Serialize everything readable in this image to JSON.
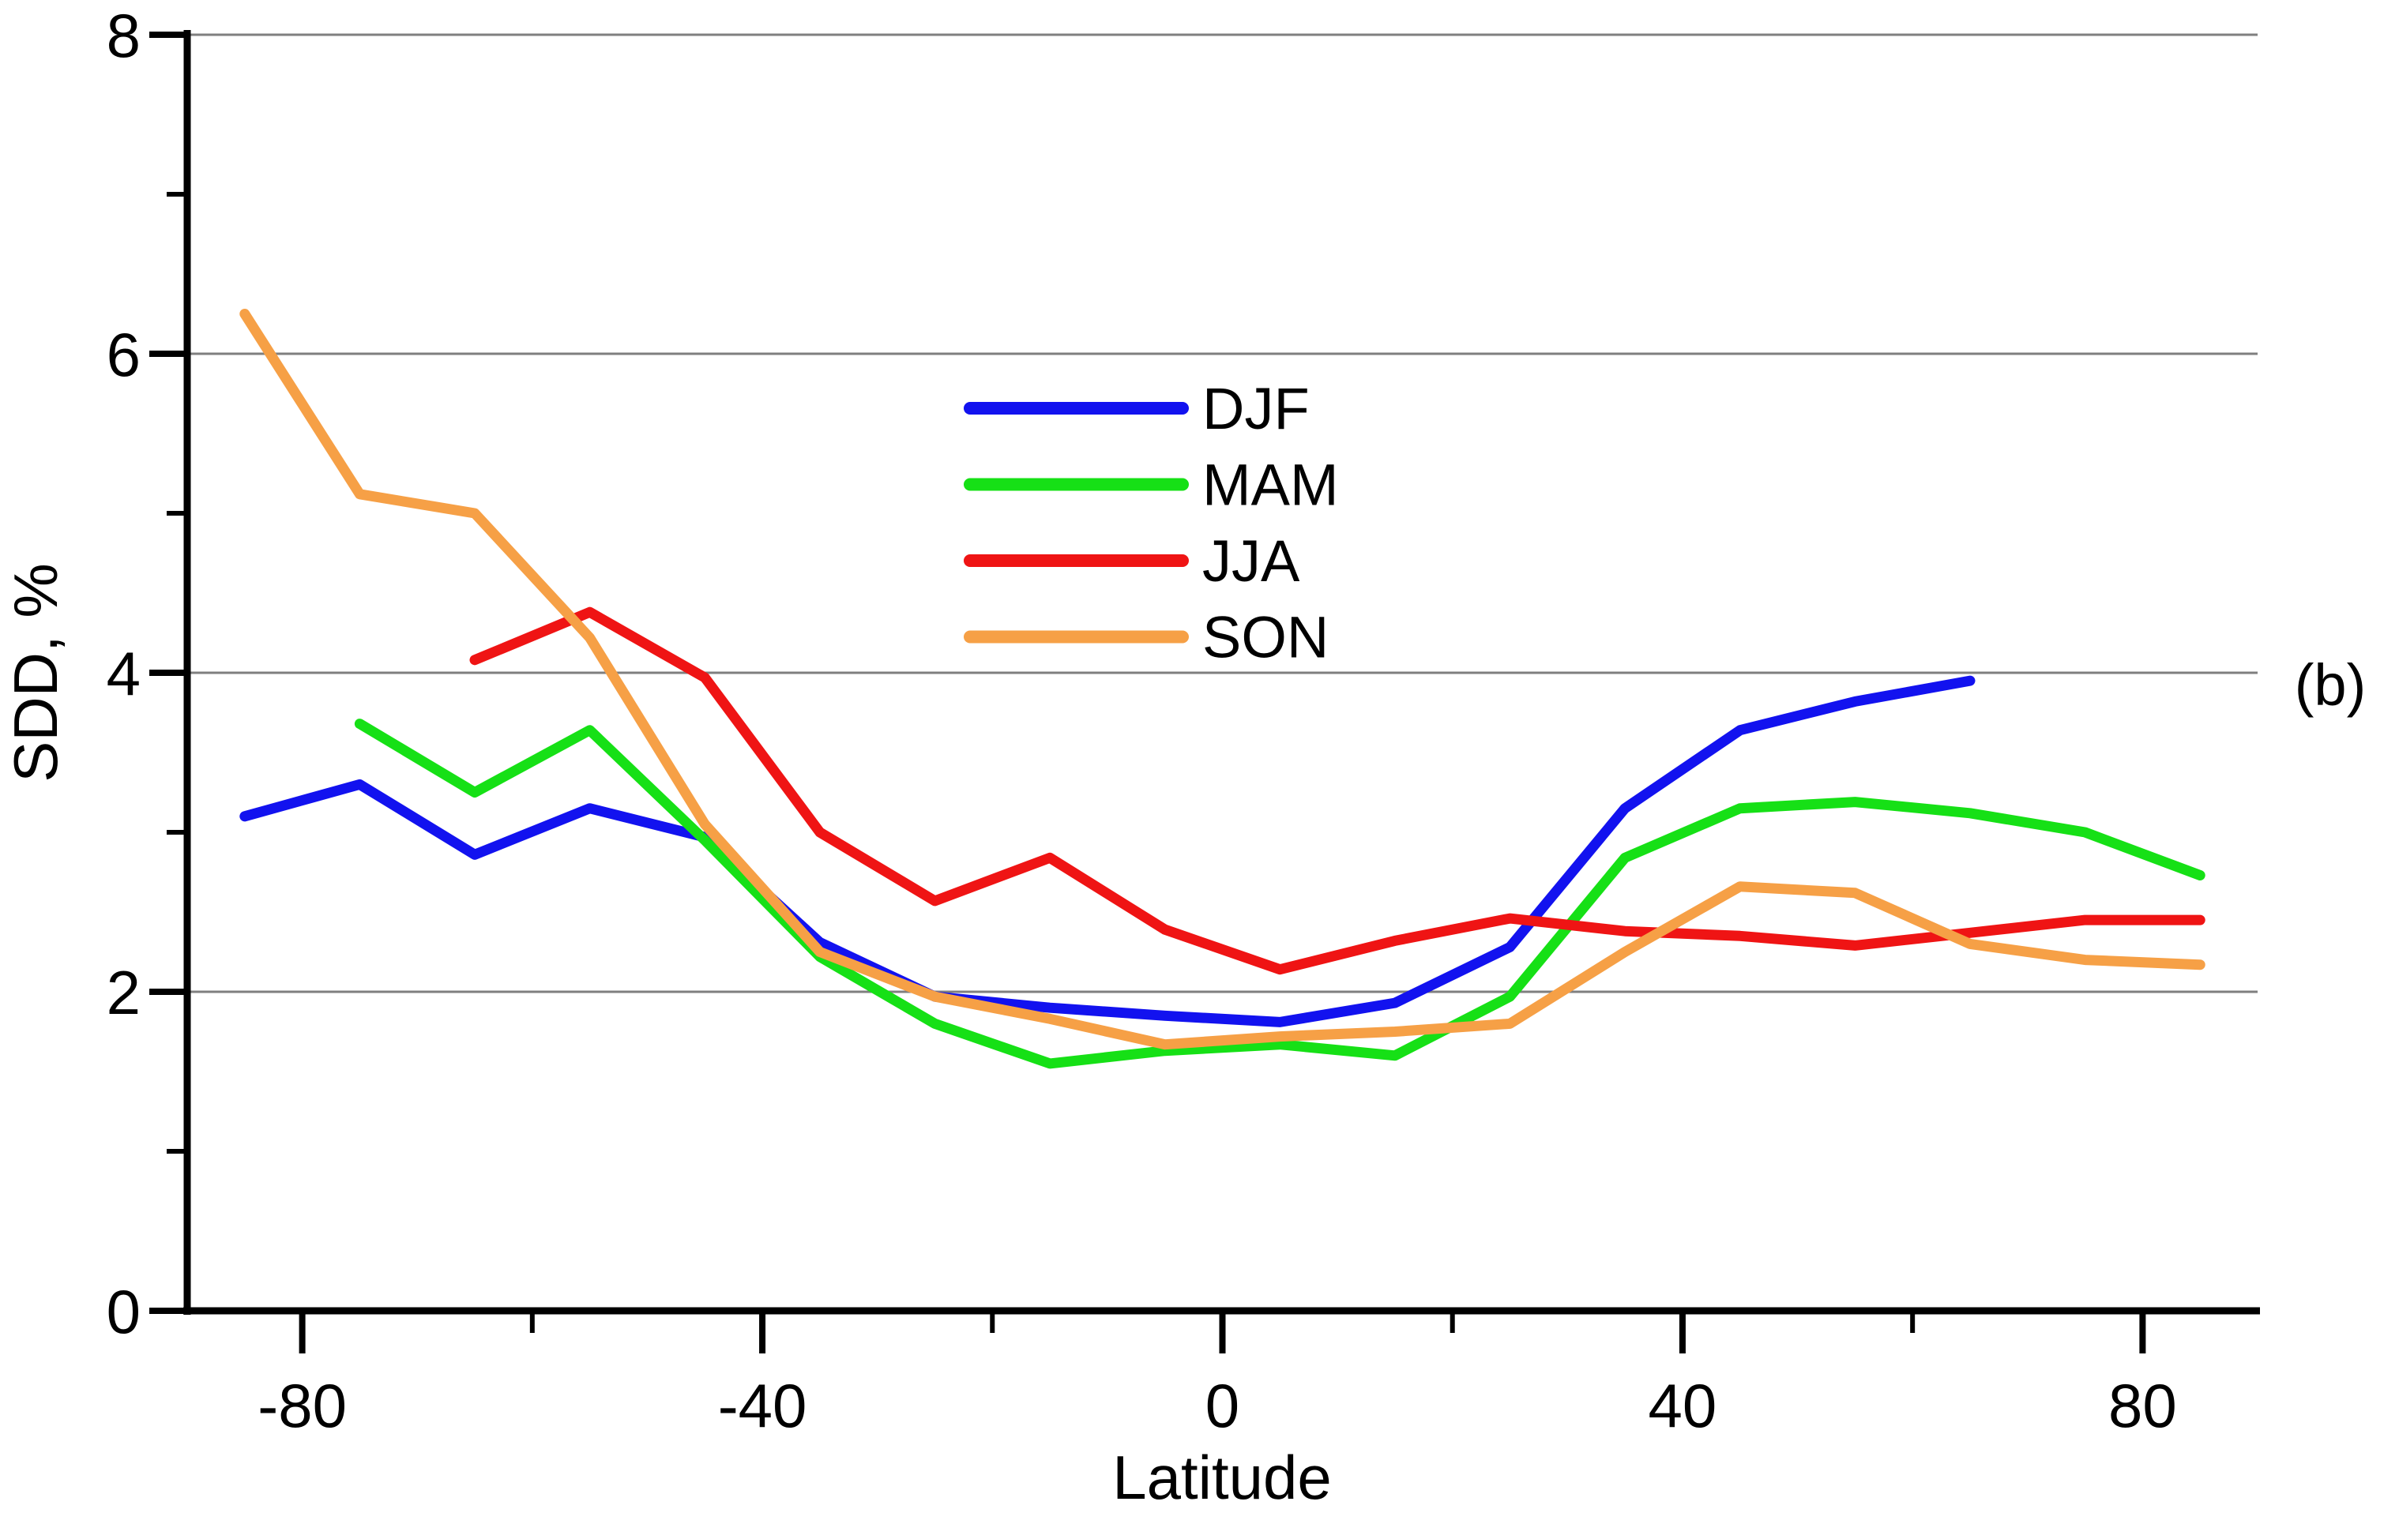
{
  "chart_data": {
    "type": "line",
    "title": "",
    "xlabel": "Latitude",
    "ylabel": "SDD, %",
    "panel_label": "(b)",
    "xlim": [
      -90,
      90
    ],
    "ylim": [
      0,
      8
    ],
    "x_major_ticks": [
      -80,
      -40,
      0,
      40,
      80
    ],
    "x_minor_ticks": [
      -60,
      -20,
      20,
      60
    ],
    "y_major_ticks": [
      0,
      2,
      4,
      6,
      8
    ],
    "y_minor_ticks": [
      1,
      3,
      5,
      7
    ],
    "gridlines_y": [
      2,
      4,
      6,
      8
    ],
    "grid_on": true,
    "grid_color": "#7f7f7f",
    "axis_color": "#000000",
    "background_color": "#ffffff",
    "legend_position": "upper-center",
    "series": [
      {
        "name": "DJF",
        "color": "#1212ef",
        "x": [
          -85,
          -75,
          -65,
          -55,
          -45,
          -35,
          -25,
          -15,
          -5,
          5,
          15,
          25,
          35,
          45,
          55,
          65
        ],
        "y": [
          3.1,
          3.3,
          2.86,
          3.15,
          2.97,
          2.31,
          1.97,
          1.9,
          1.85,
          1.81,
          1.93,
          2.28,
          3.15,
          3.64,
          3.82,
          3.95
        ]
      },
      {
        "name": "MAM",
        "color": "#16e016",
        "x": [
          -75,
          -65,
          -55,
          -45,
          -35,
          -25,
          -15,
          -5,
          5,
          15,
          25,
          35,
          45,
          55,
          65,
          75,
          85
        ],
        "y": [
          3.68,
          3.25,
          3.64,
          2.95,
          2.22,
          1.8,
          1.55,
          1.63,
          1.67,
          1.6,
          1.97,
          2.84,
          3.15,
          3.19,
          3.12,
          3.0,
          2.73
        ]
      },
      {
        "name": "JJA",
        "color": "#ef1414",
        "x": [
          -65,
          -55,
          -45,
          -35,
          -25,
          -15,
          -5,
          5,
          15,
          25,
          35,
          45,
          55,
          65,
          75,
          85
        ],
        "y": [
          4.08,
          4.38,
          3.97,
          3.0,
          2.57,
          2.84,
          2.39,
          2.14,
          2.32,
          2.46,
          2.38,
          2.35,
          2.29,
          2.37,
          2.45,
          2.45
        ]
      },
      {
        "name": "SON",
        "color": "#f6a046",
        "x": [
          -85,
          -75,
          -65,
          -55,
          -45,
          -35,
          -25,
          -15,
          -5,
          5,
          15,
          25,
          35,
          45,
          55,
          65,
          75,
          85
        ],
        "y": [
          6.25,
          5.12,
          5.0,
          4.22,
          3.05,
          2.25,
          1.97,
          1.83,
          1.67,
          1.72,
          1.75,
          1.8,
          2.25,
          2.66,
          2.62,
          2.3,
          2.2,
          2.17
        ]
      }
    ]
  }
}
